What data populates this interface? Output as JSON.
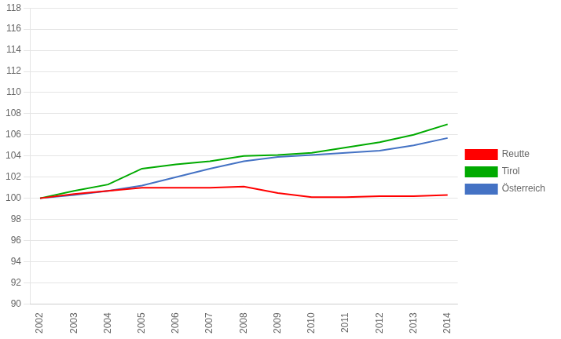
{
  "chart_data": {
    "type": "line",
    "x": [
      2002,
      2003,
      2004,
      2005,
      2006,
      2007,
      2008,
      2009,
      2010,
      2011,
      2012,
      2013,
      2014
    ],
    "series": [
      {
        "name": "Reutte",
        "color": "#ff0000",
        "values": [
          100.0,
          100.4,
          100.7,
          101.0,
          101.0,
          101.0,
          101.1,
          100.5,
          100.1,
          100.1,
          100.2,
          100.2,
          100.3
        ]
      },
      {
        "name": "Tirol",
        "color": "#00aa00",
        "values": [
          100.0,
          100.7,
          101.3,
          102.8,
          103.2,
          103.5,
          104.0,
          104.1,
          104.3,
          104.8,
          105.3,
          106.0,
          107.0
        ]
      },
      {
        "name": "Österreich",
        "color": "#4472c4",
        "values": [
          100.0,
          100.3,
          100.7,
          101.2,
          102.0,
          102.8,
          103.5,
          103.9,
          104.1,
          104.3,
          104.5,
          105.0,
          105.7
        ]
      }
    ],
    "xlim": [
      2001.7,
      2014.3
    ],
    "xticks": [
      2002,
      2003,
      2004,
      2005,
      2006,
      2007,
      2008,
      2009,
      2010,
      2011,
      2012,
      2013,
      2014
    ],
    "ylim": [
      90,
      118
    ],
    "yticks": [
      90,
      92,
      94,
      96,
      98,
      100,
      102,
      104,
      106,
      108,
      110,
      112,
      114,
      116,
      118
    ],
    "grid": "y",
    "legend": "right"
  }
}
